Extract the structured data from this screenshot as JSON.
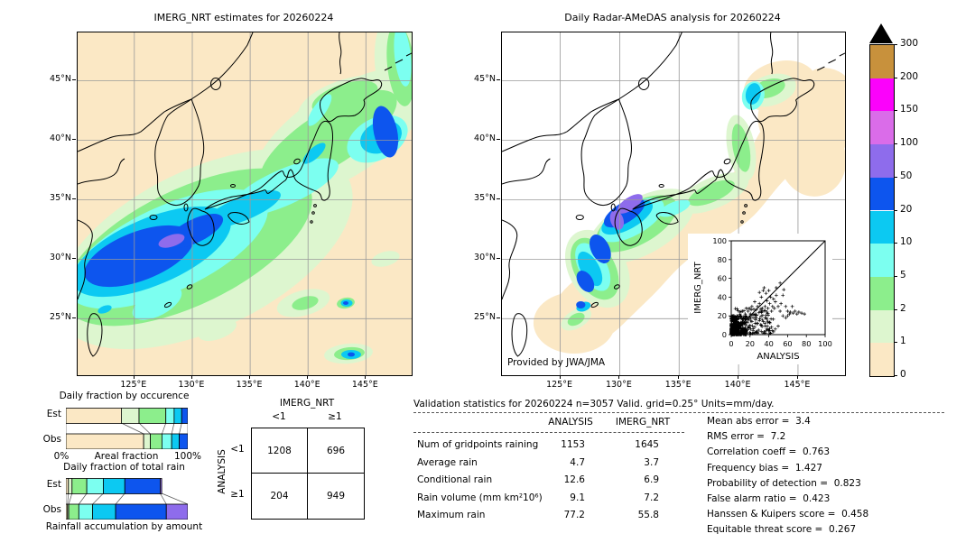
{
  "palette": {
    "levels": [
      0,
      1,
      2,
      5,
      10,
      20,
      50,
      100,
      150,
      200,
      300
    ],
    "colors": [
      "#fbe8c5",
      "#ddf6cf",
      "#8cee8c",
      "#7cfff0",
      "#0cc9f2",
      "#0d55ee",
      "#8e6cec",
      "#da6ce9",
      "#fb02fb",
      "#c8913c"
    ],
    "overflow_color": "#000000",
    "units": "mm/day"
  },
  "left_map": {
    "title": "IMERG_NRT estimates for 20260224"
  },
  "right_map": {
    "title": "Daily Radar-AMeDAS analysis for 20260224",
    "credit": "Provided by JWA/JMA"
  },
  "axes": {
    "x_ticks": [
      "125°E",
      "130°E",
      "135°E",
      "140°E",
      "145°E"
    ],
    "x_tick_lons": [
      125,
      130,
      135,
      140,
      145
    ],
    "lon_range": [
      120.1,
      148.95
    ],
    "y_ticks": [
      "45°N",
      "40°N",
      "35°N",
      "30°N",
      "25°N"
    ],
    "y_tick_lats": [
      45,
      40,
      35,
      30,
      25
    ],
    "lat_range": [
      20.25,
      49.05
    ]
  },
  "labels": {
    "est": "Est",
    "obs": "Obs"
  },
  "chart_data": [
    {
      "id": "occurrence-fractions",
      "type": "bar",
      "title": "Daily fraction by occurence",
      "orientation": "horizontal-stacked",
      "categories": [
        "Est",
        "Obs"
      ],
      "segment_levels_mm": [
        "0-1",
        "1-2",
        "2-5",
        "5-10",
        "10-20",
        "20-50"
      ],
      "series": {
        "Est": [
          45.5,
          14.5,
          22.0,
          6.8,
          6.2,
          5.0
        ],
        "Obs": [
          63.8,
          5.5,
          9.5,
          8.0,
          6.2,
          7.0
        ]
      },
      "x_min_label": "0%",
      "xlabel": "Areal fraction",
      "x_max_label": "100%"
    },
    {
      "id": "total-rain-fractions",
      "type": "bar",
      "title": "Daily fraction of total rain",
      "orientation": "horizontal-stacked",
      "categories": [
        "Est",
        "Obs"
      ],
      "segment_levels_mm": [
        "0-1",
        "1-2",
        "2-5",
        "5-10",
        "10-20",
        "20-50",
        "50-100"
      ],
      "series": {
        "Est": [
          2.6,
          3.8,
          15.4,
          17.3,
          22.4,
          36.9,
          1.6
        ],
        "Obs": [
          1.3,
          1.0,
          8.3,
          11.3,
          18.9,
          41.6,
          17.6
        ]
      },
      "bar_scale": {
        "Est": 0.786,
        "Obs": 1.0
      },
      "xlabel": "Rainfall accumulation by amount"
    },
    {
      "id": "contingency",
      "type": "table",
      "col_title": "IMERG_NRT",
      "row_title": "ANALYSIS",
      "col_labels": [
        "<1",
        "≥1"
      ],
      "row_labels": [
        "<1",
        "≥1"
      ],
      "values": [
        [
          "1208",
          "696"
        ],
        [
          "204",
          "949"
        ]
      ]
    },
    {
      "id": "validation-stats",
      "type": "table",
      "title": "Validation statistics for 20260224  n=3057 Valid. grid=0.25° Units=mm/day.",
      "columns": [
        "ANALYSIS",
        "IMERG_NRT"
      ],
      "rows": [
        {
          "label": "Num of gridpoints raining",
          "values": [
            "1153",
            "1645"
          ]
        },
        {
          "label": "Average rain",
          "values": [
            "4.7",
            "3.7"
          ]
        },
        {
          "label": "Conditional rain",
          "values": [
            "12.6",
            "6.9"
          ]
        },
        {
          "label": "Rain volume (mm km²10⁶)",
          "values": [
            "9.1",
            "7.2"
          ]
        },
        {
          "label": "Maximum rain",
          "values": [
            "77.2",
            "55.8"
          ]
        }
      ]
    },
    {
      "id": "skill-metrics",
      "type": "table",
      "rows": [
        {
          "label": "Mean abs error",
          "value": "3.4"
        },
        {
          "label": "RMS error",
          "value": "7.2"
        },
        {
          "label": "Correlation coeff",
          "value": "0.763"
        },
        {
          "label": "Frequency bias",
          "value": "1.427"
        },
        {
          "label": "Probability of detection",
          "value": "0.823"
        },
        {
          "label": "False alarm ratio",
          "value": "0.423"
        },
        {
          "label": "Hanssen & Kuipers score",
          "value": "0.458"
        },
        {
          "label": "Equitable threat score",
          "value": "0.267"
        }
      ]
    },
    {
      "id": "scatter-inset",
      "type": "scatter",
      "xlabel": "ANALYSIS",
      "ylabel": "IMERG_NRT",
      "xlim": [
        0,
        100
      ],
      "ylim": [
        0,
        100
      ],
      "ticks": [
        0,
        20,
        40,
        60,
        80,
        100
      ],
      "diagonal": true,
      "marker": "+",
      "dense_cluster": {
        "count": 420,
        "shape": "concentrated near origin",
        "x_max": 16,
        "y_max": 20
      },
      "mid_cluster": {
        "count": 130,
        "x_range": [
          3,
          45
        ],
        "y_range": [
          1,
          28
        ]
      },
      "outlier_points": [
        [
          18,
          25
        ],
        [
          20,
          28
        ],
        [
          22,
          30
        ],
        [
          24,
          27
        ],
        [
          25,
          35
        ],
        [
          26,
          22
        ],
        [
          28,
          30
        ],
        [
          30,
          33
        ],
        [
          30,
          45
        ],
        [
          32,
          40
        ],
        [
          33,
          28
        ],
        [
          34,
          47
        ],
        [
          35,
          50
        ],
        [
          36,
          30
        ],
        [
          37,
          44
        ],
        [
          38,
          36
        ],
        [
          39,
          28
        ],
        [
          40,
          47
        ],
        [
          41,
          33
        ],
        [
          42,
          40
        ],
        [
          43,
          25
        ],
        [
          44,
          30
        ],
        [
          45,
          38
        ],
        [
          46,
          28
        ],
        [
          47,
          35
        ],
        [
          48,
          42
        ],
        [
          48,
          50
        ],
        [
          50,
          30
        ],
        [
          52,
          25
        ],
        [
          52,
          55
        ],
        [
          53,
          33
        ],
        [
          55,
          42
        ],
        [
          56,
          48
        ],
        [
          58,
          30
        ],
        [
          60,
          25
        ],
        [
          62,
          22
        ],
        [
          63,
          24
        ],
        [
          65,
          30
        ],
        [
          66,
          23
        ],
        [
          68,
          25
        ],
        [
          70,
          22
        ],
        [
          72,
          24
        ],
        [
          75,
          23
        ],
        [
          78,
          22
        ],
        [
          35,
          3
        ],
        [
          38,
          6
        ],
        [
          40,
          4
        ],
        [
          43,
          8
        ],
        [
          45,
          3
        ],
        [
          47,
          6
        ],
        [
          50,
          9
        ],
        [
          28,
          12
        ],
        [
          30,
          15
        ],
        [
          32,
          10
        ],
        [
          34,
          14
        ],
        [
          36,
          18
        ],
        [
          25,
          8
        ],
        [
          22,
          14
        ],
        [
          20,
          10
        ],
        [
          18,
          16
        ],
        [
          55,
          20
        ],
        [
          58,
          18
        ],
        [
          60,
          20
        ],
        [
          15,
          22
        ],
        [
          16,
          28
        ],
        [
          12,
          25
        ],
        [
          10,
          20
        ],
        [
          24,
          18
        ],
        [
          26,
          16
        ],
        [
          20,
          20
        ]
      ]
    },
    {
      "id": "imerg-precip-map",
      "type": "heatmap",
      "title": "IMERG_NRT estimates for 20260224",
      "units": "mm/day",
      "levels": [
        0,
        1,
        2,
        5,
        10,
        20,
        50,
        100,
        150,
        200,
        300
      ],
      "region": "120E-149E, 20N-49N (Japan / Korea / East China Sea)",
      "description": "Broad SW-NE rain band; heaviest (20-50, core 50-100 mm) over the East China Sea and Korea Strait; secondary 20-50 mm band east of Tohoku near 144E/40N."
    },
    {
      "id": "radar-amedas-precip-map",
      "type": "heatmap",
      "title": "Daily Radar-AMeDAS analysis for 20260224",
      "units": "mm/day",
      "levels": [
        0,
        1,
        2,
        5,
        10,
        20,
        50,
        100,
        150,
        200,
        300
      ],
      "region": "Radar coverage band along the Japanese archipelago",
      "description": "Rain band along western Japan; 50-100 mm core over the Sea of Japan off western Honshu; light rain patch over northern Hokkaido."
    }
  ]
}
